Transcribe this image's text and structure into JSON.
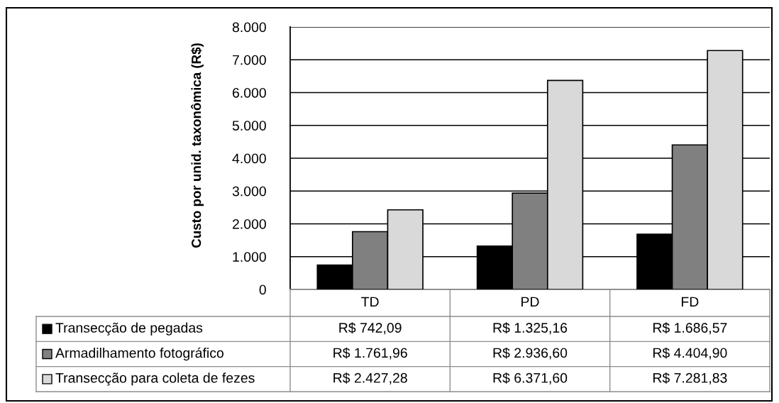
{
  "chart_data": {
    "type": "bar",
    "ylabel": "Custo por unid. taxonômica (R$)",
    "categories": [
      "TD",
      "PD",
      "FD"
    ],
    "series": [
      {
        "name": "Transecção de pegadas",
        "color": "#000000",
        "values": [
          742.09,
          1325.16,
          1686.57
        ],
        "value_labels": [
          "R$ 742,09",
          "R$ 1.325,16",
          "R$ 1.686,57"
        ]
      },
      {
        "name": "Armadilhamento fotográfico",
        "color": "#808080",
        "values": [
          1761.96,
          2936.6,
          4404.9
        ],
        "value_labels": [
          "R$ 1.761,96",
          "R$ 2.936,60",
          "R$ 4.404,90"
        ]
      },
      {
        "name": "Transecção para coleta de fezes",
        "color": "#d9d9d9",
        "values": [
          2427.28,
          6371.6,
          7281.83
        ],
        "value_labels": [
          "R$ 2.427,28",
          "R$ 6.371,60",
          "R$ 7.281,83"
        ]
      }
    ],
    "ylim": [
      0,
      8000
    ],
    "yticks": [
      0,
      {
        "value": 1000,
        "label": "1.000"
      },
      {
        "value": 2000,
        "label": "2.000"
      },
      {
        "value": 3000,
        "label": "3.000"
      },
      {
        "value": 4000,
        "label": "4.000"
      },
      {
        "value": 5000,
        "label": "5.000"
      },
      {
        "value": 6000,
        "label": "6.000"
      },
      {
        "value": 7000,
        "label": "7.000"
      },
      {
        "value": 8000,
        "label": "8.000"
      }
    ],
    "grid": "y",
    "legend": "bottom"
  }
}
